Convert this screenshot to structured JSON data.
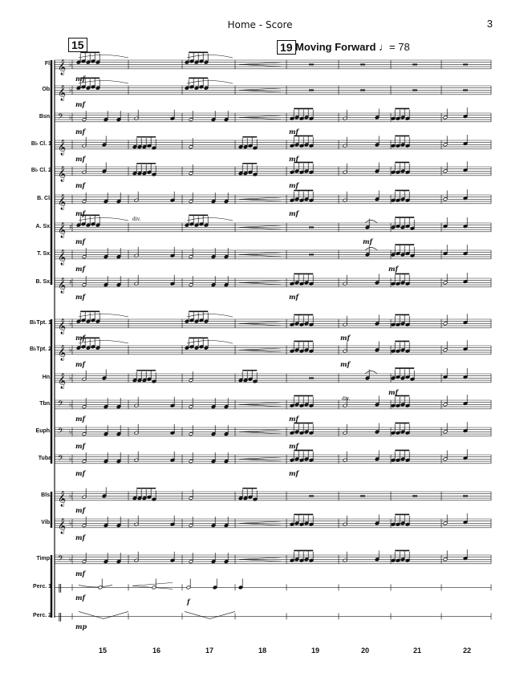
{
  "header": {
    "title": "Home - Score",
    "page": "3"
  },
  "rehearsal_marks": [
    {
      "label": "15",
      "measure": 15
    },
    {
      "label": "19",
      "measure": 19
    }
  ],
  "tempo": {
    "text": "Moving Forward",
    "bpm": "= 78"
  },
  "instruments": [
    {
      "name": "Fl.",
      "clef": "treble",
      "dyn": "mf"
    },
    {
      "name": "Ob.",
      "clef": "treble",
      "dyn": "mf"
    },
    {
      "name": "Bsn.",
      "clef": "bass",
      "dyn": "mf"
    },
    {
      "name": "B♭ Cl. 1",
      "clef": "treble",
      "dyn": "mf"
    },
    {
      "name": "B♭ Cl. 2",
      "clef": "treble",
      "dyn": "mf"
    },
    {
      "name": "B. Cl.",
      "clef": "treble",
      "dyn": "mf"
    },
    {
      "name": "A. Sx.",
      "clef": "treble",
      "dyn": "mf"
    },
    {
      "name": "T. Sx.",
      "clef": "treble",
      "dyn": "mf"
    },
    {
      "name": "B. Sx.",
      "clef": "treble",
      "dyn": "mf"
    },
    {
      "name": "B♭Tpt. 1",
      "clef": "treble",
      "dyn": "mf"
    },
    {
      "name": "B♭Tpt. 2",
      "clef": "treble",
      "dyn": "mf"
    },
    {
      "name": "Hn.",
      "clef": "treble",
      "dyn": ""
    },
    {
      "name": "Tbn.",
      "clef": "bass",
      "dyn": "mf"
    },
    {
      "name": "Euph.",
      "clef": "bass",
      "dyn": "mf"
    },
    {
      "name": "Tuba",
      "clef": "bass",
      "dyn": "mf"
    },
    {
      "name": "Bls.",
      "clef": "treble",
      "dyn": "mf"
    },
    {
      "name": "Vib.",
      "clef": "treble",
      "dyn": "mf"
    },
    {
      "name": "Timp.",
      "clef": "bass",
      "dyn": "mf"
    },
    {
      "name": "Perc. 1",
      "clef": "perc",
      "dyn": "mf"
    },
    {
      "name": "Perc. 2",
      "clef": "perc",
      "dyn": "mp"
    }
  ],
  "extra_dynamics": [
    {
      "text": "mf",
      "label": "Bsn. m19"
    },
    {
      "text": "mf",
      "label": "Cl1 m19"
    },
    {
      "text": "mf",
      "label": "Cl2 m19"
    },
    {
      "text": "mf",
      "label": "BCl m19"
    },
    {
      "text": "mf",
      "label": "ASx m20"
    },
    {
      "text": "mf",
      "label": "TSx m21"
    },
    {
      "text": "mf",
      "label": "BSx m19"
    },
    {
      "text": "mf",
      "label": "Tpt1 m19"
    },
    {
      "text": "mf",
      "label": "Tpt2 m19"
    },
    {
      "text": "mf",
      "label": "Hn m21"
    },
    {
      "text": "mf",
      "label": "Tbn m19"
    },
    {
      "text": "mf",
      "label": "Euph m19"
    },
    {
      "text": "mf",
      "label": "Tuba m19"
    },
    {
      "text": "f",
      "label": "Perc1 m17"
    }
  ],
  "divisi_labels": [
    "div.",
    "div."
  ],
  "measure_numbers": [
    "15",
    "16",
    "17",
    "18",
    "19",
    "20",
    "21",
    "22"
  ]
}
